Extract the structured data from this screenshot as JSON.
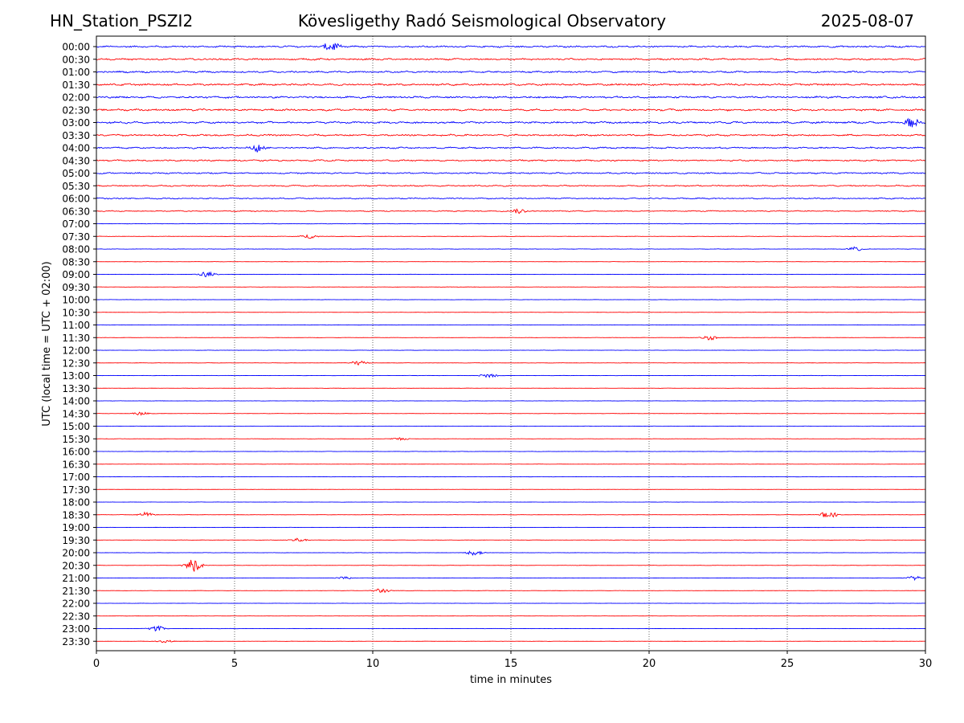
{
  "header": {
    "station": "HN_Station_PSZI2",
    "observatory": "Kövesligethy Radó Seismological Observatory",
    "date": "2025-08-07"
  },
  "chart_data": {
    "type": "line",
    "title": "Kövesligethy Radó Seismological Observatory",
    "xlabel": "time in minutes",
    "ylabel": "UTC (local time = UTC + 02:00)",
    "xlim": [
      0,
      30
    ],
    "xticks": [
      "0",
      "5",
      "10",
      "15",
      "20",
      "25",
      "30"
    ],
    "grid": "vertical dotted at every 5 minutes",
    "colors": [
      "#0000ff",
      "#ff0000"
    ],
    "rows": [
      "00:00",
      "00:30",
      "01:00",
      "01:30",
      "02:00",
      "02:30",
      "03:00",
      "03:30",
      "04:00",
      "04:30",
      "05:00",
      "05:30",
      "06:00",
      "06:30",
      "07:00",
      "07:30",
      "08:00",
      "08:30",
      "09:00",
      "09:30",
      "10:00",
      "10:30",
      "11:00",
      "11:30",
      "12:00",
      "12:30",
      "13:00",
      "13:30",
      "14:00",
      "14:30",
      "15:00",
      "15:30",
      "16:00",
      "16:30",
      "17:00",
      "17:30",
      "18:00",
      "18:30",
      "19:00",
      "19:30",
      "20:00",
      "20:30",
      "21:00",
      "21:30",
      "22:00",
      "22:30",
      "23:00",
      "23:30"
    ],
    "noise_level": [
      0.9,
      0.9,
      0.9,
      1.0,
      1.0,
      1.0,
      1.0,
      0.9,
      0.85,
      0.8,
      0.75,
      0.7,
      0.65,
      0.55,
      0.25,
      0.2,
      0.2,
      0.15,
      0.15,
      0.15,
      0.15,
      0.15,
      0.15,
      0.15,
      0.15,
      0.15,
      0.15,
      0.12,
      0.15,
      0.15,
      0.15,
      0.15,
      0.15,
      0.12,
      0.15,
      0.1,
      0.12,
      0.15,
      0.12,
      0.15,
      0.15,
      0.15,
      0.15,
      0.15,
      0.12,
      0.1,
      0.12,
      0.12
    ],
    "events": [
      {
        "row": 0,
        "t": 8.5,
        "amp": 6
      },
      {
        "row": 6,
        "t": 29.5,
        "amp": 6
      },
      {
        "row": 8,
        "t": 5.9,
        "amp": 5
      },
      {
        "row": 13,
        "t": 15.3,
        "amp": 3
      },
      {
        "row": 15,
        "t": 7.7,
        "amp": 2.5
      },
      {
        "row": 16,
        "t": 27.5,
        "amp": 3
      },
      {
        "row": 18,
        "t": 4.0,
        "amp": 3.5
      },
      {
        "row": 23,
        "t": 22.2,
        "amp": 3
      },
      {
        "row": 25,
        "t": 9.5,
        "amp": 3
      },
      {
        "row": 26,
        "t": 14.2,
        "amp": 3
      },
      {
        "row": 29,
        "t": 1.6,
        "amp": 2
      },
      {
        "row": 31,
        "t": 11.0,
        "amp": 2
      },
      {
        "row": 37,
        "t": 1.8,
        "amp": 3
      },
      {
        "row": 37,
        "t": 26.5,
        "amp": 5
      },
      {
        "row": 39,
        "t": 7.3,
        "amp": 2.5
      },
      {
        "row": 40,
        "t": 13.7,
        "amp": 3.5
      },
      {
        "row": 41,
        "t": 3.5,
        "amp": 8
      },
      {
        "row": 42,
        "t": 9.0,
        "amp": 2
      },
      {
        "row": 42,
        "t": 29.6,
        "amp": 2.5
      },
      {
        "row": 43,
        "t": 10.3,
        "amp": 3
      },
      {
        "row": 46,
        "t": 2.2,
        "amp": 3
      },
      {
        "row": 47,
        "t": 2.5,
        "amp": 2
      }
    ]
  }
}
